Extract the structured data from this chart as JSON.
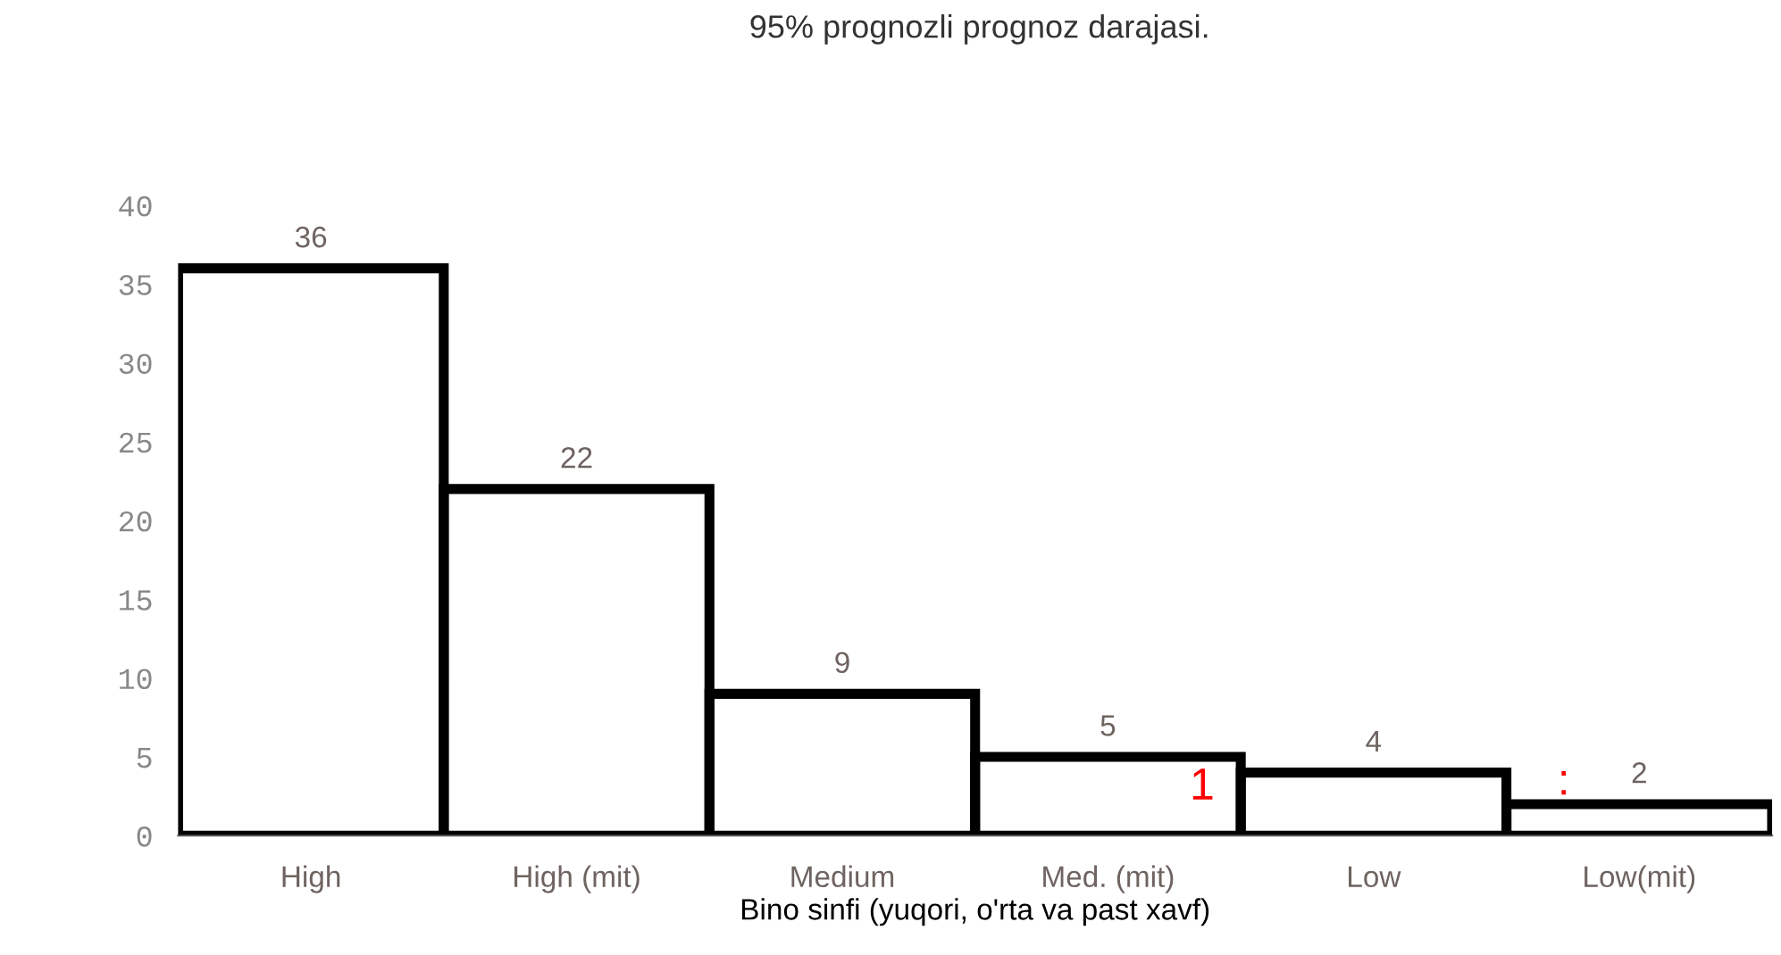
{
  "chart_data": {
    "type": "bar",
    "title": "95% prognozli prognoz darajasi.",
    "xlabel": "Bino sinfi (yuqori, o'rta va past xavf)",
    "categories": [
      "High",
      "High (mit)",
      "Medium",
      "Med. (mit)",
      "Low",
      "Low(mit)"
    ],
    "values": [
      36,
      22,
      9,
      5,
      4,
      2
    ],
    "color": "#000000",
    "data_labels": true,
    "ylim": [
      0,
      40
    ],
    "yticks": [
      0,
      5,
      10,
      15,
      20,
      25,
      30,
      35,
      40
    ],
    "grid": false,
    "legend": false,
    "annotations": [
      "1",
      ":"
    ]
  }
}
